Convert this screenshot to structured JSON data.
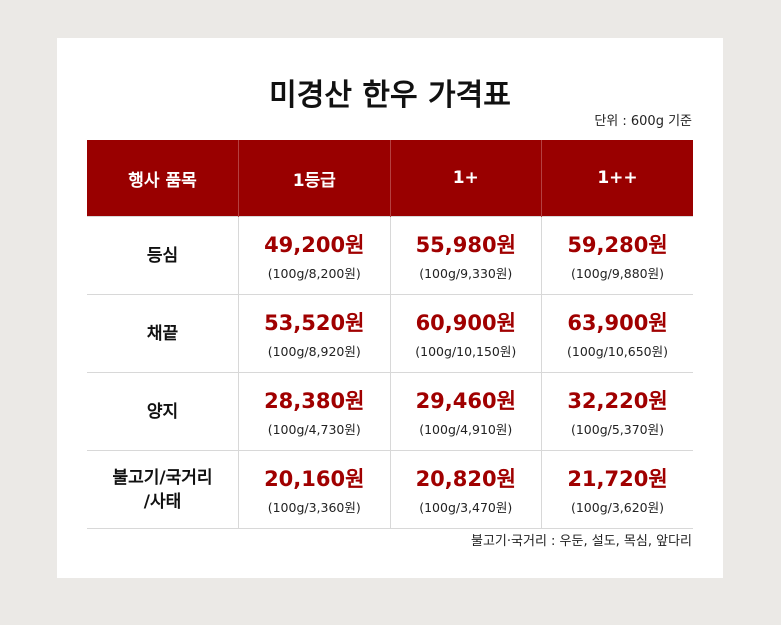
{
  "header": {
    "title": "미경산 한우 가격표",
    "unit_note": "단위 : 600g 기준"
  },
  "table": {
    "columns": [
      "행사 품목",
      "1등급",
      "1+",
      "1++"
    ],
    "rows": [
      {
        "item": "등심",
        "prices": [
          {
            "price": "49,200원",
            "per": "(100g/8,200원)"
          },
          {
            "price": "55,980원",
            "per": "(100g/9,330원)"
          },
          {
            "price": "59,280원",
            "per": "(100g/9,880원)"
          }
        ]
      },
      {
        "item": "채끝",
        "prices": [
          {
            "price": "53,520원",
            "per": "(100g/8,920원)"
          },
          {
            "price": "60,900원",
            "per": "(100g/10,150원)"
          },
          {
            "price": "63,900원",
            "per": "(100g/10,650원)"
          }
        ]
      },
      {
        "item": "양지",
        "prices": [
          {
            "price": "28,380원",
            "per": "(100g/4,730원)"
          },
          {
            "price": "29,460원",
            "per": "(100g/4,910원)"
          },
          {
            "price": "32,220원",
            "per": "(100g/5,370원)"
          }
        ]
      },
      {
        "item": "불고기/국거리\n/사태",
        "prices": [
          {
            "price": "20,160원",
            "per": "(100g/3,360원)"
          },
          {
            "price": "20,820원",
            "per": "(100g/3,470원)"
          },
          {
            "price": "21,720원",
            "per": "(100g/3,620원)"
          }
        ]
      }
    ]
  },
  "footnote": "불고기·국거리 : 우둔, 설도, 목심, 앞다리"
}
